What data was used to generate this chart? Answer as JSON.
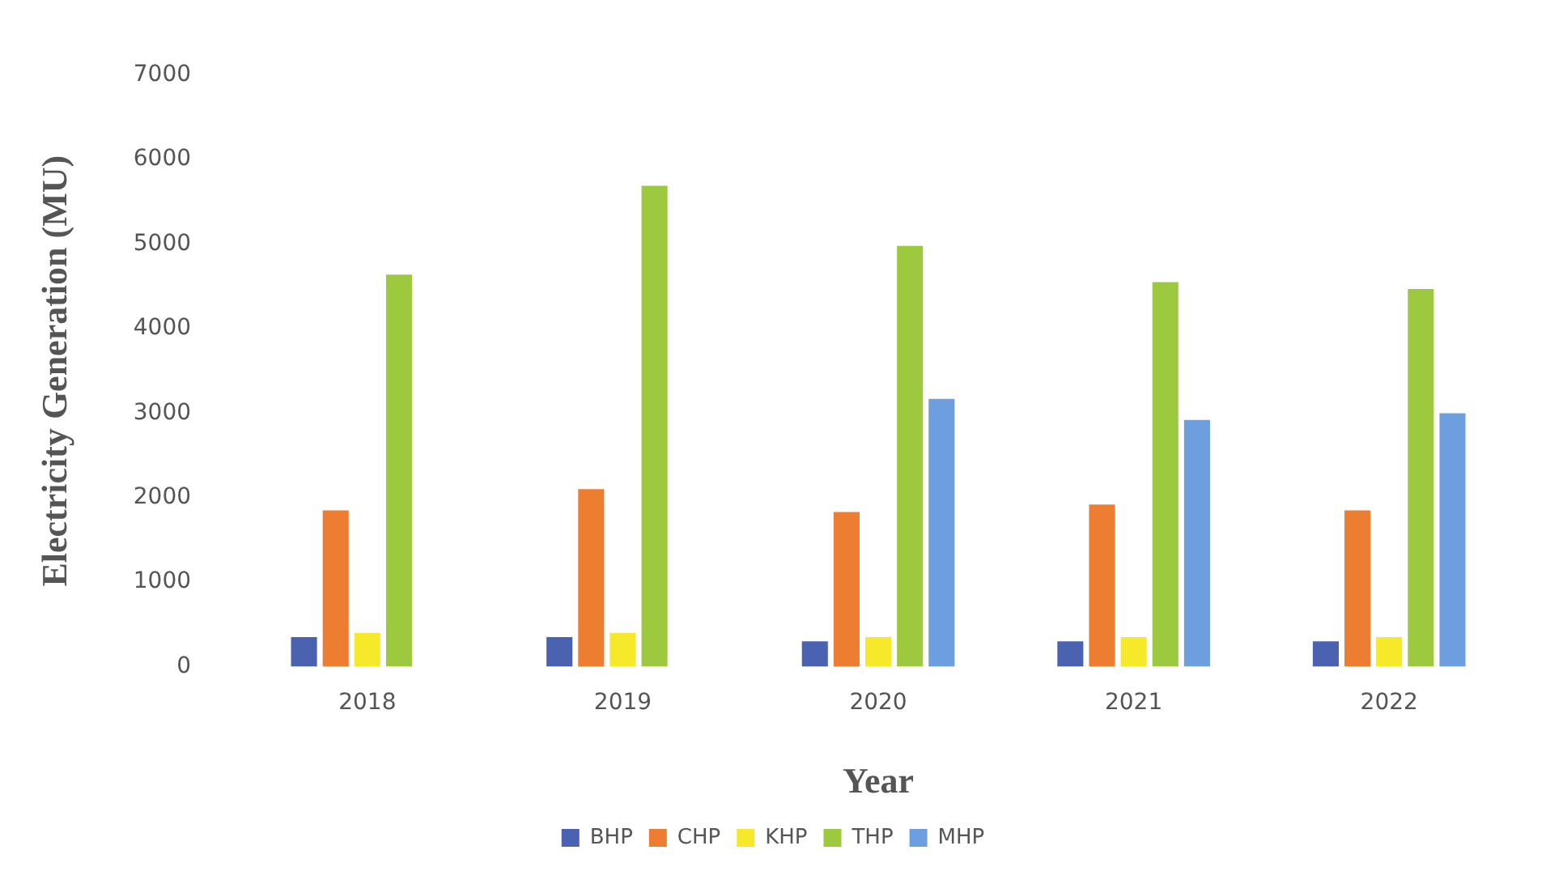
{
  "chart_data": {
    "type": "bar",
    "xlabel": "Year",
    "ylabel": "Electricity Generation (MU)",
    "categories": [
      "2018",
      "2019",
      "2020",
      "2021",
      "2022"
    ],
    "series": [
      {
        "name": "BHP",
        "color": "#4a62b0",
        "values": [
          350,
          350,
          300,
          300,
          300
        ]
      },
      {
        "name": "CHP",
        "color": "#ed7d31",
        "values": [
          1850,
          2100,
          1830,
          1920,
          1850
        ]
      },
      {
        "name": "KHP",
        "color": "#f5e92a",
        "values": [
          400,
          400,
          350,
          350,
          350
        ]
      },
      {
        "name": "THP",
        "color": "#9dc93f",
        "values": [
          4640,
          5690,
          4980,
          4550,
          4470
        ]
      },
      {
        "name": "MHP",
        "color": "#6d9fe0",
        "values": [
          null,
          null,
          3170,
          2920,
          3000
        ]
      }
    ],
    "ylim": [
      0,
      7000
    ],
    "yticks": [
      0,
      1000,
      2000,
      3000,
      4000,
      5000,
      6000,
      7000
    ],
    "grid": false,
    "legend": "bottom"
  }
}
